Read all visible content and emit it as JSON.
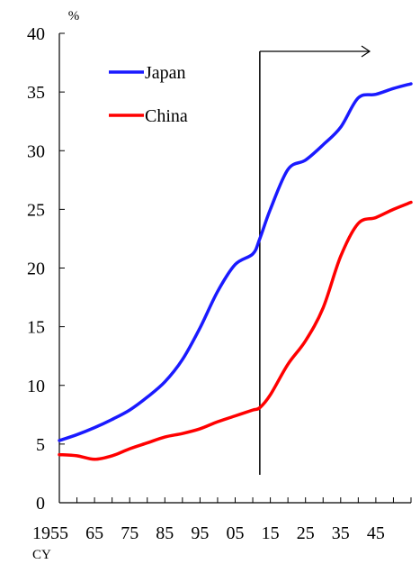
{
  "chart_data": {
    "type": "line",
    "title": "",
    "ylabel": "%",
    "xlabel": "CY",
    "ylim": [
      0,
      40
    ],
    "xlim": [
      1950,
      2050
    ],
    "yticks": [
      0,
      5,
      10,
      15,
      20,
      25,
      30,
      35,
      40
    ],
    "xtick_labels": [
      {
        "x": 1950,
        "label": "1955"
      },
      {
        "x": 1955,
        "label": ""
      },
      {
        "x": 1960,
        "label": "65"
      },
      {
        "x": 1965,
        "label": ""
      },
      {
        "x": 1970,
        "label": "75"
      },
      {
        "x": 1975,
        "label": ""
      },
      {
        "x": 1980,
        "label": "85"
      },
      {
        "x": 1985,
        "label": ""
      },
      {
        "x": 1990,
        "label": "95"
      },
      {
        "x": 1995,
        "label": ""
      },
      {
        "x": 2000,
        "label": "05"
      },
      {
        "x": 2005,
        "label": ""
      },
      {
        "x": 2010,
        "label": "15"
      },
      {
        "x": 2015,
        "label": ""
      },
      {
        "x": 2020,
        "label": "25"
      },
      {
        "x": 2025,
        "label": ""
      },
      {
        "x": 2030,
        "label": "35"
      },
      {
        "x": 2035,
        "label": ""
      },
      {
        "x": 2040,
        "label": "45"
      },
      {
        "x": 2045,
        "label": ""
      },
      {
        "x": 2050,
        "label": ""
      }
    ],
    "legend_position": "top-left",
    "annotation": {
      "type": "vertical-line-with-right-arrow",
      "x": 2007
    },
    "series": [
      {
        "name": "Japan",
        "color": "#1a1aff",
        "x": [
          1950,
          1955,
          1960,
          1965,
          1970,
          1975,
          1980,
          1985,
          1990,
          1995,
          2000,
          2005,
          2007,
          2010,
          2015,
          2020,
          2025,
          2030,
          2035,
          2040,
          2045,
          2050
        ],
        "y": [
          5.3,
          5.8,
          6.4,
          7.1,
          7.9,
          9.0,
          10.3,
          12.2,
          14.9,
          18.0,
          20.3,
          21.2,
          22.5,
          25.0,
          28.4,
          29.2,
          30.5,
          32.0,
          34.5,
          34.8,
          35.3,
          35.7
        ]
      },
      {
        "name": "China",
        "color": "#ff0000",
        "x": [
          1950,
          1955,
          1960,
          1965,
          1970,
          1975,
          1980,
          1985,
          1990,
          1995,
          2000,
          2005,
          2007,
          2010,
          2015,
          2020,
          2025,
          2030,
          2035,
          2040,
          2045,
          2050
        ],
        "y": [
          4.1,
          4.0,
          3.7,
          4.0,
          4.6,
          5.1,
          5.6,
          5.9,
          6.3,
          6.9,
          7.4,
          7.9,
          8.1,
          9.2,
          11.8,
          13.8,
          16.6,
          21.0,
          23.8,
          24.3,
          25.0,
          25.6
        ]
      }
    ]
  }
}
